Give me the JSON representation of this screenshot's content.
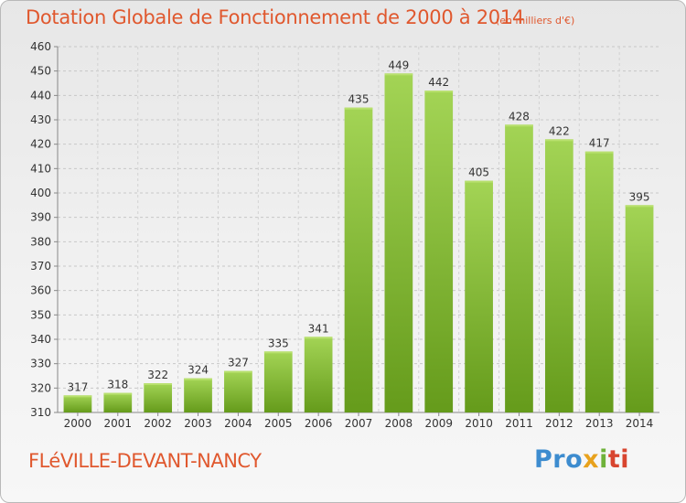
{
  "title": "Dotation Globale de Fonctionnement de 2000 à 2014",
  "subtitle": "(en milliers d'€)",
  "commune": "FLéVILLE-DEVANT-NANCY",
  "logo": {
    "p1": "Pro",
    "p2": "x",
    "p3": "i",
    "p4": "ti"
  },
  "colors": {
    "bar_top": "#9fd04f",
    "bar_bottom": "#6a9e1f",
    "title": "#e0582e"
  },
  "chart_data": {
    "type": "bar",
    "title": "Dotation Globale de Fonctionnement de 2000 à 2014",
    "subtitle": "(en milliers d'€)",
    "categories": [
      "2000",
      "2001",
      "2002",
      "2003",
      "2004",
      "2005",
      "2006",
      "2007",
      "2008",
      "2009",
      "2010",
      "2011",
      "2012",
      "2013",
      "2014"
    ],
    "values": [
      317,
      318,
      322,
      324,
      327,
      335,
      341,
      435,
      449,
      442,
      405,
      428,
      422,
      417,
      395
    ],
    "ylim": [
      310,
      460
    ],
    "yticks": [
      310,
      320,
      330,
      340,
      350,
      360,
      370,
      380,
      390,
      400,
      410,
      420,
      430,
      440,
      450,
      460
    ],
    "grid": true
  }
}
